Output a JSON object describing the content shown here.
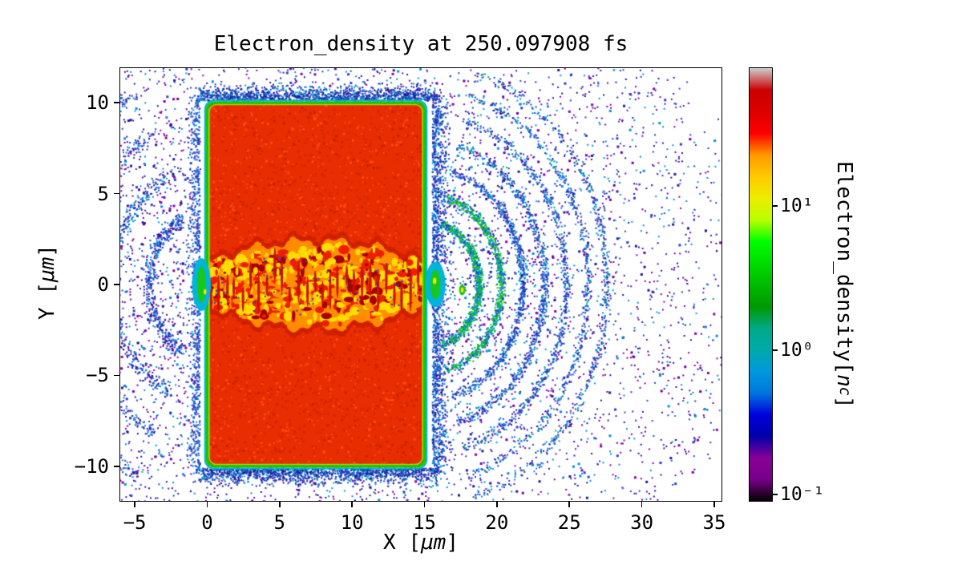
{
  "figure": {
    "background": "#ffffff"
  },
  "chart_data": {
    "type": "heatmap",
    "title": "Electron_density at 250.097908 fs",
    "xlabel": "X [μm]",
    "xlabel_prefix": "X [",
    "xlabel_unit": "μm",
    "xlabel_suffix": "]",
    "ylabel": "Y [μm]",
    "ylabel_prefix": "Y [",
    "ylabel_unit": "μm",
    "ylabel_suffix": "]",
    "xlim": [
      -6,
      35.5
    ],
    "ylim": [
      -11.9,
      11.9
    ],
    "x_ticks": [
      -5,
      0,
      5,
      10,
      15,
      20,
      25,
      30,
      35
    ],
    "y_ticks": [
      -10,
      -5,
      0,
      5,
      10
    ],
    "grid": false,
    "colorbar": {
      "label": "Electron_density[n_c]",
      "label_prefix": "Electron_density[",
      "label_var": "n",
      "label_sub": "c",
      "label_suffix": "]",
      "scale": "log",
      "range": [
        0.09,
        90
      ],
      "ticks": [
        {
          "label": "10⁻¹",
          "value": 0.1
        },
        {
          "label": "10⁰",
          "value": 1
        },
        {
          "label": "10¹",
          "value": 10
        }
      ],
      "colormap": "nipy_spectral",
      "stops": [
        [
          0.0,
          [
            0,
            0,
            0
          ]
        ],
        [
          0.05,
          [
            119,
            0,
            136
          ]
        ],
        [
          0.1,
          [
            136,
            0,
            153
          ]
        ],
        [
          0.15,
          [
            0,
            0,
            170
          ]
        ],
        [
          0.2,
          [
            0,
            0,
            221
          ]
        ],
        [
          0.25,
          [
            0,
            119,
            221
          ]
        ],
        [
          0.3,
          [
            0,
            153,
            221
          ]
        ],
        [
          0.35,
          [
            0,
            170,
            170
          ]
        ],
        [
          0.4,
          [
            0,
            170,
            136
          ]
        ],
        [
          0.45,
          [
            0,
            153,
            0
          ]
        ],
        [
          0.5,
          [
            0,
            187,
            0
          ]
        ],
        [
          0.55,
          [
            0,
            221,
            0
          ]
        ],
        [
          0.6,
          [
            0,
            255,
            0
          ]
        ],
        [
          0.65,
          [
            187,
            255,
            0
          ]
        ],
        [
          0.7,
          [
            238,
            238,
            0
          ]
        ],
        [
          0.75,
          [
            255,
            204,
            0
          ]
        ],
        [
          0.8,
          [
            255,
            153,
            0
          ]
        ],
        [
          0.85,
          [
            255,
            0,
            0
          ]
        ],
        [
          0.9,
          [
            221,
            0,
            0
          ]
        ],
        [
          0.95,
          [
            204,
            0,
            0
          ]
        ],
        [
          1.0,
          [
            204,
            204,
            204
          ]
        ]
      ]
    },
    "features": {
      "target_slab": {
        "x_um": [
          0,
          15
        ],
        "y_um": [
          -10,
          10
        ],
        "density_desc": "overdense plasma slab, ~30 n_c",
        "color": "#e82d00",
        "speckle_colors": [
          "#d62600",
          "#ff4a10",
          "#c82200"
        ]
      },
      "slab_edge": {
        "green": "#12c800",
        "yellow_green": "#9ae400",
        "cyan": "#00b4dc"
      },
      "laser_channel": {
        "x_um": [
          0,
          15
        ],
        "max_half_width_um": 2.5,
        "desc": "turbulent heated channel with periodic density bunches along axis",
        "base_color": "#ff8c00",
        "blob_colors": [
          "#ffdd00",
          "#ff9100",
          "#f01d00",
          "#a80000"
        ],
        "bunch_color": "#c81400",
        "bunch_spacing_um": 0.55
      },
      "expanding_shells_right": {
        "center_um": [
          15.3,
          0
        ],
        "radii_um": [
          3.5,
          5,
          6.5,
          8,
          9.5,
          11,
          12.3
        ],
        "colors": [
          "#2840c8",
          "#0090e0",
          "#3a0ca3",
          "#00a878",
          "#16c816"
        ]
      },
      "expanding_shells_left": {
        "center_um": [
          0,
          0
        ],
        "radii_um": [
          4,
          6.5,
          9,
          11.5
        ],
        "colors": [
          "#2840c8",
          "#0090e0",
          "#3a0ca3"
        ]
      },
      "scattered_electrons": {
        "center_um": [
          7.5,
          0
        ],
        "extent_um": 27,
        "colors": [
          "#20189a",
          "#2840c8",
          "#6a00a8",
          "#0090e0",
          "#8800aa"
        ]
      },
      "exit_glow": {
        "green": "#18c818",
        "cyan": "#00b4dc",
        "yellow": "#ffe100",
        "right_um": [
          15.5,
          0
        ],
        "left_um": [
          -0.3,
          0
        ],
        "spot_um": [
          17.6,
          -0.3
        ]
      }
    }
  }
}
